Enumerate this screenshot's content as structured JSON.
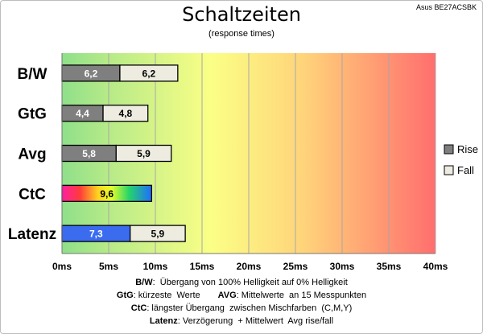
{
  "header": {
    "title": "Schaltzeiten",
    "subtitle": "(response times)",
    "corner_label": "Asus BE27ACSBK"
  },
  "chart_data": {
    "type": "bar",
    "orientation": "horizontal",
    "categories": [
      "B/W",
      "GtG",
      "Avg",
      "CtC",
      "Latenz"
    ],
    "xlim": [
      0,
      40
    ],
    "x_ticks": [
      "0ms",
      "5ms",
      "10ms",
      "15ms",
      "20ms",
      "25ms",
      "30ms",
      "35ms",
      "40ms"
    ],
    "grid": true,
    "legend_position": "right",
    "legend": [
      "Rise",
      "Fall"
    ],
    "series": [
      {
        "name": "Rise",
        "values": [
          6.2,
          4.4,
          5.8,
          null,
          null
        ],
        "labels": [
          "6,2",
          "4,4",
          "5,8",
          "",
          ""
        ]
      },
      {
        "name": "Fall",
        "values": [
          6.2,
          4.8,
          5.9,
          null,
          null
        ],
        "labels": [
          "6,2",
          "4,8",
          "5,9",
          "",
          ""
        ]
      },
      {
        "name": "CtC",
        "values": [
          null,
          null,
          null,
          9.6,
          null
        ],
        "labels": [
          "",
          "",
          "",
          "9,6",
          ""
        ]
      },
      {
        "name": "Latenz",
        "values": [
          null,
          null,
          null,
          null,
          7.3
        ],
        "labels": [
          "",
          "",
          "",
          "",
          "7,3"
        ]
      },
      {
        "name": "Rise/Fall avg",
        "values": [
          null,
          null,
          null,
          null,
          5.9
        ],
        "labels": [
          "",
          "",
          "",
          "",
          "5,9"
        ]
      }
    ],
    "colors": {
      "rise": "#7f7f7f",
      "fall": "#eeece1",
      "latenz": "#3b6cf0",
      "bg_green": "#92e08a",
      "bg_yellow": "#fbff84",
      "bg_red": "#ff7070"
    }
  },
  "footer": {
    "l1_key": "B/W",
    "l1_text": ":  Übergang von 100% Helligkeit auf 0% Helligkeit",
    "l2_key": "GtG",
    "l2_text": ": kürzeste  Werte",
    "l2b_key": "AVG",
    "l2b_text": ": Mittelwerte  an 15 Messpunkten",
    "l3_key": "CtC",
    "l3_text": ": längster Übergang  zwischen Mischfarben  (C,M,Y)",
    "l4_key": "Latenz",
    "l4_text": ": Verzögerung  + Mittelwert  Avg rise/fall"
  }
}
